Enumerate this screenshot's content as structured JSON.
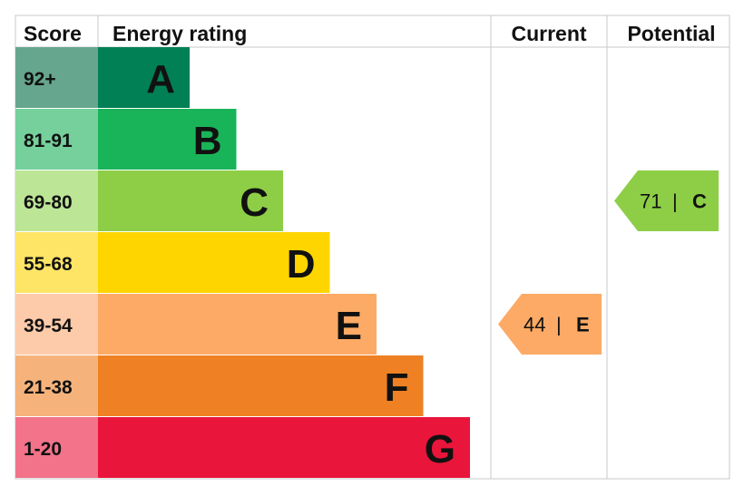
{
  "headers": {
    "score": "Score",
    "rating": "Energy rating",
    "current": "Current",
    "potential": "Potential"
  },
  "chart_data": {
    "type": "bar",
    "categories": [
      "A",
      "B",
      "C",
      "D",
      "E",
      "F",
      "G"
    ],
    "score_ranges": [
      "92+",
      "81-91",
      "69-80",
      "55-68",
      "39-54",
      "21-38",
      "1-20"
    ],
    "band_colors": [
      "#008054",
      "#19b459",
      "#8dce46",
      "#ffd500",
      "#fcaa65",
      "#ef8023",
      "#e9153b"
    ],
    "score_cell_colors": [
      "#66a68e",
      "#75d09c",
      "#bce596",
      "#ffe566",
      "#fecbaa",
      "#f5b37b",
      "#f2738a"
    ],
    "current": {
      "value": 44,
      "rating": "E",
      "separator": "|"
    },
    "potential": {
      "value": 71,
      "rating": "C",
      "separator": "|"
    }
  }
}
